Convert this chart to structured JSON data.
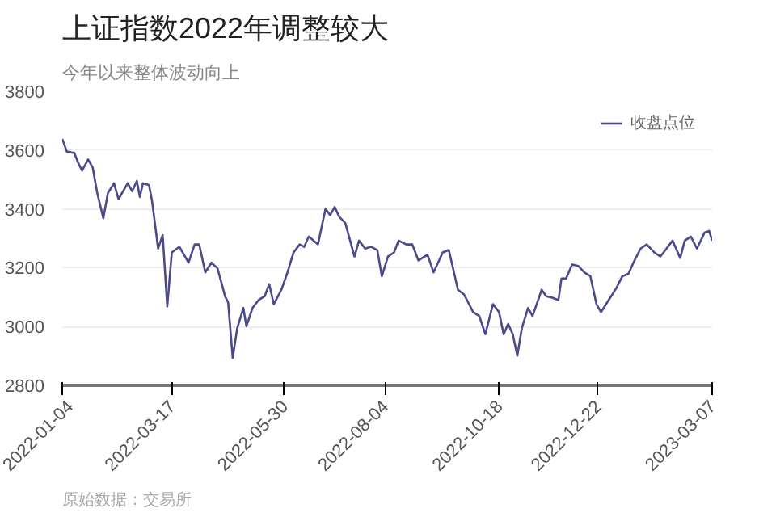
{
  "chart_data": {
    "type": "line",
    "title": "上证指数2022年调整较大",
    "subtitle": "今年以来整体波动向上",
    "annotations": [
      "原始数据：交易所"
    ],
    "x": [
      "2022-01-04",
      "2022-01-07",
      "2022-01-12",
      "2022-01-14",
      "2022-01-17",
      "2022-01-21",
      "2022-01-24",
      "2022-01-27",
      "2022-01-31",
      "2022-02-03",
      "2022-02-07",
      "2022-02-10",
      "2022-02-16",
      "2022-02-19",
      "2022-02-22",
      "2022-02-24",
      "2022-02-26",
      "2022-03-02",
      "2022-03-04",
      "2022-03-08",
      "2022-03-11",
      "2022-03-14",
      "2022-03-17",
      "2022-03-22",
      "2022-03-28",
      "2022-04-01",
      "2022-04-04",
      "2022-04-08",
      "2022-04-12",
      "2022-04-16",
      "2022-04-21",
      "2022-04-23",
      "2022-04-26",
      "2022-04-29",
      "2022-05-03",
      "2022-05-05",
      "2022-05-09",
      "2022-05-13",
      "2022-05-17",
      "2022-05-20",
      "2022-05-23",
      "2022-05-28",
      "2022-06-01",
      "2022-06-05",
      "2022-06-09",
      "2022-06-12",
      "2022-06-15",
      "2022-06-21",
      "2022-06-26",
      "2022-06-29",
      "2022-07-02",
      "2022-07-05",
      "2022-07-09",
      "2022-07-15",
      "2022-07-18",
      "2022-07-22",
      "2022-07-26",
      "2022-07-30",
      "2022-08-02",
      "2022-08-06",
      "2022-08-10",
      "2022-08-13",
      "2022-08-18",
      "2022-08-22",
      "2022-08-26",
      "2022-09-01",
      "2022-09-05",
      "2022-09-11",
      "2022-09-15",
      "2022-09-21",
      "2022-09-25",
      "2022-10-01",
      "2022-10-05",
      "2022-10-09",
      "2022-10-14",
      "2022-10-18",
      "2022-10-21",
      "2022-10-24",
      "2022-10-27",
      "2022-10-30",
      "2022-11-02",
      "2022-11-06",
      "2022-11-09",
      "2022-11-15",
      "2022-11-18",
      "2022-11-22",
      "2022-11-26",
      "2022-11-28",
      "2022-12-01",
      "2022-12-05",
      "2022-12-09",
      "2022-12-13",
      "2022-12-17",
      "2022-12-21",
      "2022-12-24",
      "2022-12-29",
      "2023-01-03",
      "2023-01-07",
      "2023-01-11",
      "2023-01-15",
      "2023-01-19",
      "2023-01-23",
      "2023-01-28",
      "2023-02-01",
      "2023-02-05",
      "2023-02-09",
      "2023-02-14",
      "2023-02-17",
      "2023-02-21",
      "2023-02-25",
      "2023-03-02",
      "2023-03-05",
      "2023-03-07"
    ],
    "series": [
      {
        "name": "收盘点位",
        "color": "#4b4a8c",
        "values": [
          3638,
          3595,
          3590,
          3562,
          3530,
          3568,
          3541,
          3454,
          3368,
          3454,
          3487,
          3433,
          3487,
          3460,
          3495,
          3441,
          3487,
          3481,
          3427,
          3265,
          3311,
          3068,
          3252,
          3271,
          3217,
          3279,
          3279,
          3184,
          3217,
          3198,
          3103,
          3082,
          2893,
          2995,
          3063,
          3001,
          3063,
          3090,
          3103,
          3144,
          3076,
          3125,
          3184,
          3252,
          3279,
          3271,
          3306,
          3279,
          3400,
          3379,
          3406,
          3373,
          3352,
          3238,
          3292,
          3265,
          3271,
          3260,
          3171,
          3238,
          3252,
          3292,
          3279,
          3279,
          3225,
          3244,
          3184,
          3252,
          3260,
          3125,
          3109,
          3049,
          3036,
          2974,
          3076,
          3049,
          2974,
          3009,
          2974,
          2901,
          2995,
          3063,
          3036,
          3125,
          3103,
          3098,
          3090,
          3163,
          3163,
          3211,
          3206,
          3184,
          3171,
          3076,
          3049,
          3090,
          3130,
          3171,
          3179,
          3225,
          3265,
          3279,
          3252,
          3238,
          3265,
          3292,
          3233,
          3292,
          3306,
          3265,
          3319,
          3325,
          3292
        ]
      }
    ],
    "xlim": [
      "2022-01-04",
      "2023-03-07"
    ],
    "xticks": [
      "2022-01-04",
      "2022-03-17",
      "2022-05-30",
      "2022-08-04",
      "2022-10-18",
      "2022-12-22",
      "2023-03-07"
    ],
    "ylim": [
      2800,
      3800
    ],
    "yticks": [
      2800,
      3000,
      3200,
      3400,
      3600,
      3800
    ],
    "grid": "y",
    "legend": "top right",
    "marker": "none",
    "line_style": "solid"
  }
}
